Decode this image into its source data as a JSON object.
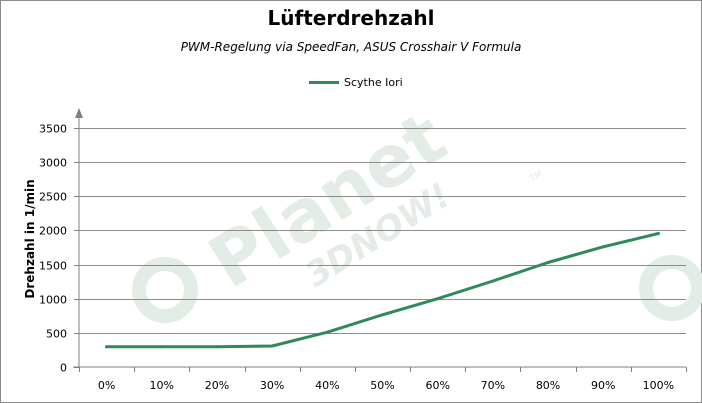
{
  "colors": {
    "series": "#2e8b57",
    "grid": "#8c8c8c",
    "axis": "#808080",
    "watermark": "#e4ece6"
  },
  "watermark": {
    "brand": "Planet",
    "sub": "3DNOW!",
    "mark": "TM"
  },
  "chart_data": {
    "type": "line",
    "title": "Lüfterdrehzahl",
    "subtitle": "PWM-Regelung via SpeedFan, ASUS Crosshair V Formula",
    "xlabel": "",
    "ylabel": "Drehzahl in 1/min",
    "categories": [
      "0%",
      "10%",
      "20%",
      "30%",
      "40%",
      "50%",
      "60%",
      "70%",
      "80%",
      "90%",
      "100%"
    ],
    "series": [
      {
        "name": "Scythe Iori",
        "values": [
          297,
          297,
          297,
          307,
          510,
          765,
          1000,
          1260,
          1530,
          1760,
          1955
        ]
      }
    ],
    "ylim": [
      0,
      3500
    ],
    "yticks": [
      0,
      500,
      1000,
      1500,
      2000,
      2500,
      3000,
      3500
    ],
    "grid": true,
    "legend": "top-center"
  }
}
